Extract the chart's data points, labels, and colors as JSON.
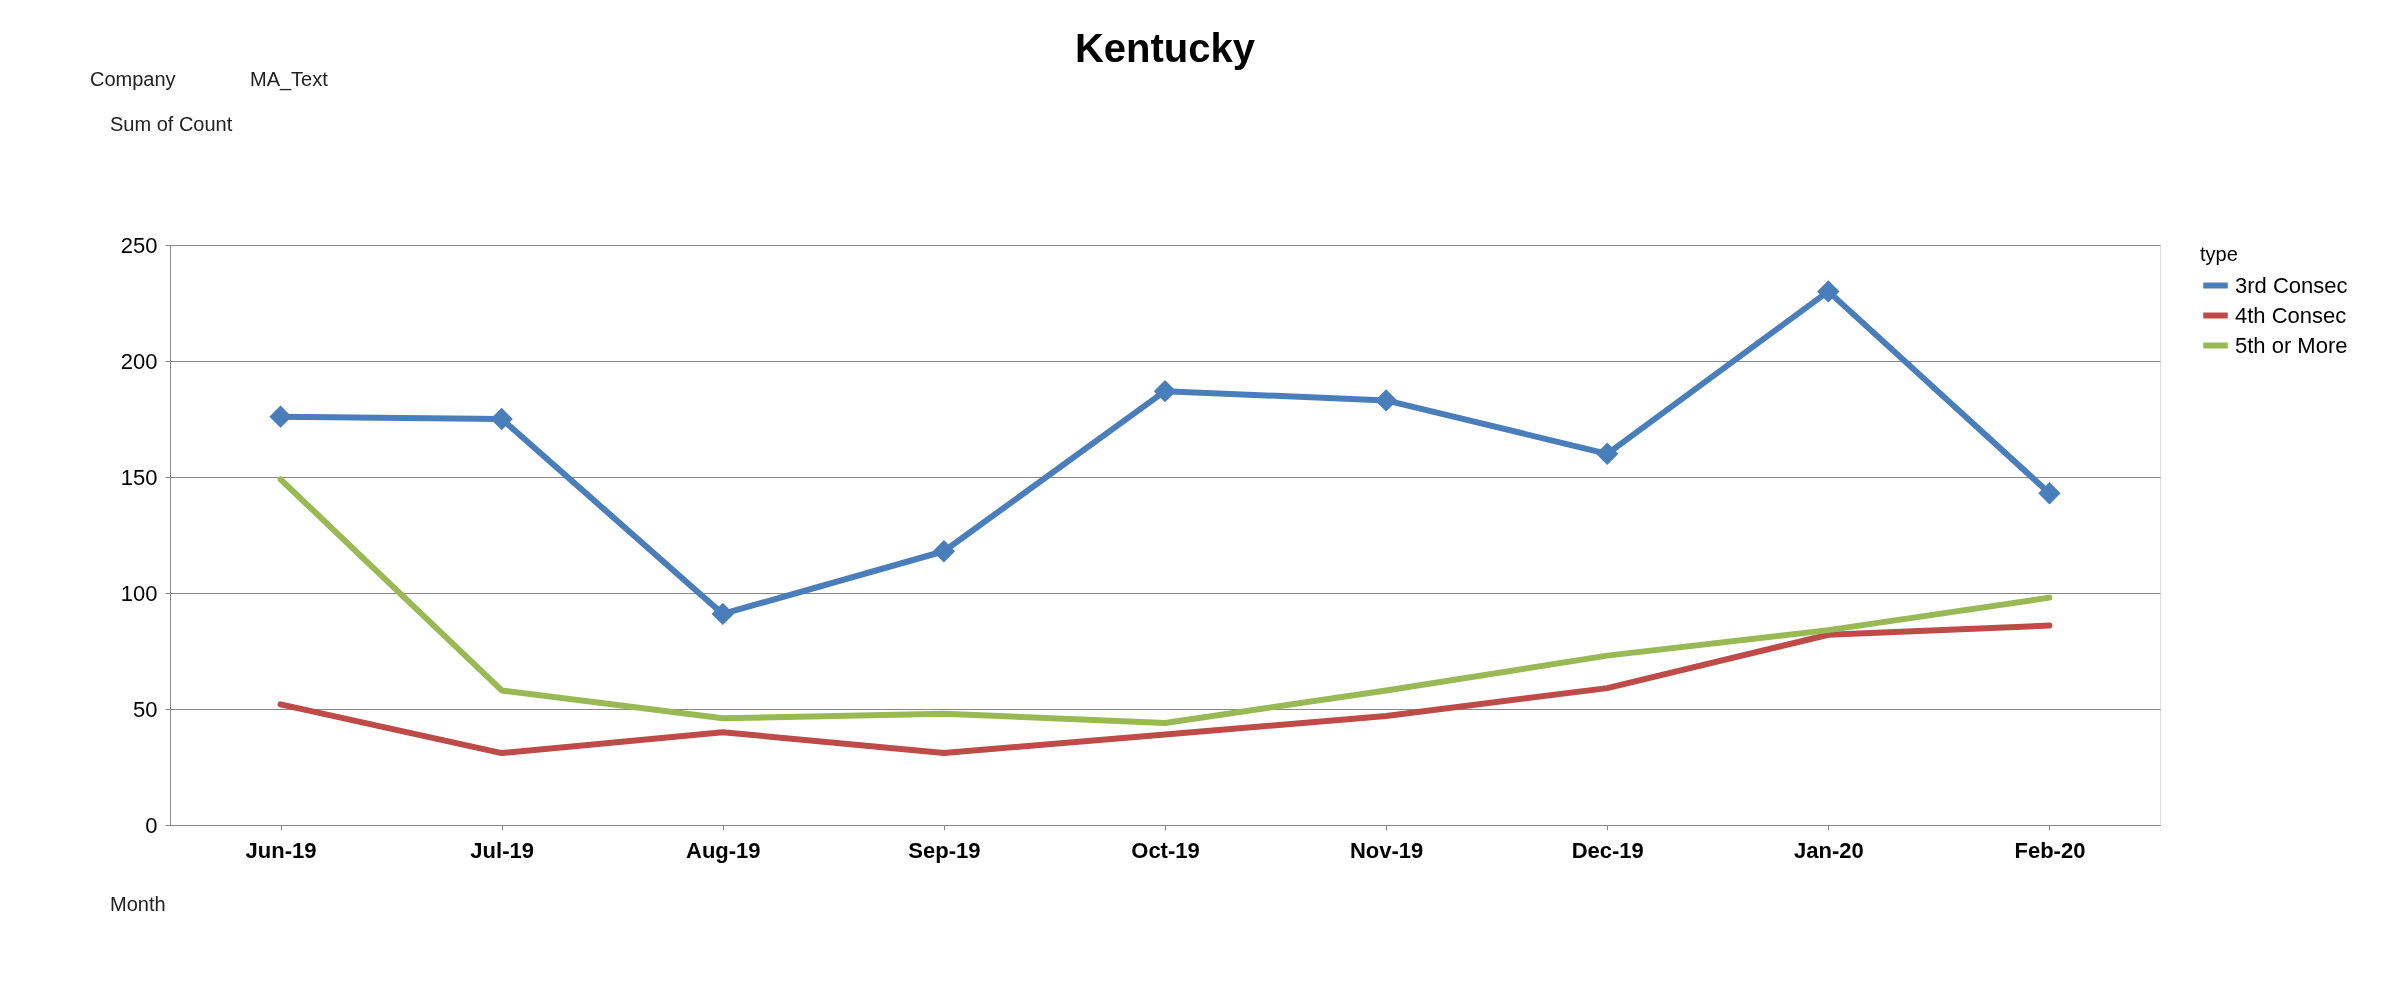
{
  "chart_data": {
    "type": "line",
    "title": "Kentucky",
    "legend_title": "type",
    "categories": [
      "Jun-19",
      "Jul-19",
      "Aug-19",
      "Sep-19",
      "Oct-19",
      "Nov-19",
      "Dec-19",
      "Jan-20",
      "Feb-20"
    ],
    "series": [
      {
        "name": "3rd Consec",
        "color": "#4a7ebb",
        "marker": "diamond",
        "values": [
          176,
          175,
          91,
          118,
          187,
          183,
          160,
          230,
          143
        ]
      },
      {
        "name": "4th Consec",
        "color": "#be4b48",
        "marker": "none",
        "values": [
          52,
          31,
          40,
          31,
          39,
          47,
          59,
          82,
          86
        ]
      },
      {
        "name": "5th or More",
        "color": "#98b954",
        "marker": "none",
        "values": [
          149,
          58,
          46,
          48,
          44,
          58,
          73,
          84,
          98
        ]
      }
    ],
    "ylim": [
      0,
      250
    ],
    "yticks": [
      0,
      50,
      100,
      150,
      200,
      250
    ],
    "grid": "y",
    "legend": "right",
    "line_style": "solid",
    "annotations": [
      "Company",
      "MA_Text",
      "Sum of Count",
      "Month"
    ]
  }
}
